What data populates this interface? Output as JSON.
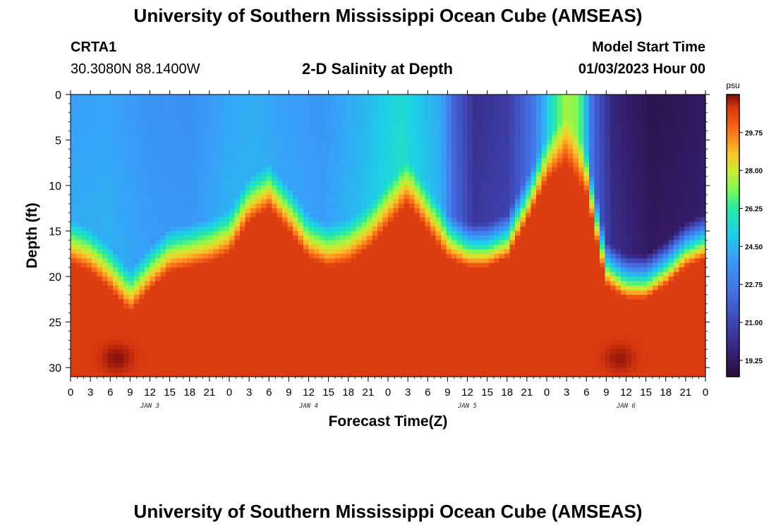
{
  "header": {
    "title": "University of Southern Mississippi Ocean Cube (AMSEAS)",
    "station": "CRTA1",
    "coords": "30.3080N  88.1400W",
    "subtitle": "2-D Salinity at Depth",
    "model_start_label": "Model Start Time",
    "model_start_value": "01/03/2023 Hour 00"
  },
  "footer": {
    "title": "University of Southern Mississippi Ocean Cube (AMSEAS)"
  },
  "chart_data": {
    "type": "heatmap",
    "title": "2-D Salinity at Depth",
    "xlabel": "Forecast Time(Z)",
    "ylabel": "Depth (ft)",
    "x_hours_range": [
      0,
      96
    ],
    "x_tick_step_hours": 3,
    "x_tick_labels": [
      "0",
      "3",
      "6",
      "9",
      "12",
      "15",
      "18",
      "21",
      "0",
      "3",
      "6",
      "9",
      "12",
      "15",
      "18",
      "21",
      "0",
      "3",
      "6",
      "9",
      "12",
      "15",
      "18",
      "21",
      "0",
      "3",
      "6",
      "9",
      "12",
      "15",
      "18",
      "21",
      "0"
    ],
    "day_labels": [
      {
        "label": "JAN 3",
        "hour": 12
      },
      {
        "label": "JAN 4",
        "hour": 36
      },
      {
        "label": "JAN 5",
        "hour": 60
      },
      {
        "label": "JAN 6",
        "hour": 84
      }
    ],
    "y_range_ft": [
      0,
      31
    ],
    "y_ticks": [
      0,
      5,
      10,
      15,
      20,
      25,
      30
    ],
    "colorbar": {
      "unit": "psu",
      "min": 18.5,
      "max": 31.5,
      "tick_values": [
        29.75,
        28.0,
        26.25,
        24.5,
        22.75,
        21.0,
        19.25
      ],
      "tick_labels": [
        "29.75",
        "28.00",
        "26.25",
        "24.50",
        "22.75",
        "21.00",
        "19.25"
      ]
    },
    "halocline_depth_ft": [
      [
        0,
        15.5
      ],
      [
        3,
        16.5
      ],
      [
        6,
        18.5
      ],
      [
        9,
        21.0
      ],
      [
        12,
        18.5
      ],
      [
        15,
        16.5
      ],
      [
        18,
        16.0
      ],
      [
        21,
        15.5
      ],
      [
        24,
        14.5
      ],
      [
        27,
        11.0
      ],
      [
        30,
        9.5
      ],
      [
        33,
        12.0
      ],
      [
        36,
        15.0
      ],
      [
        39,
        16.0
      ],
      [
        42,
        15.5
      ],
      [
        45,
        14.0
      ],
      [
        48,
        11.5
      ],
      [
        51,
        9.0
      ],
      [
        54,
        12.0
      ],
      [
        57,
        15.0
      ],
      [
        60,
        16.0
      ],
      [
        63,
        16.0
      ],
      [
        66,
        15.0
      ],
      [
        69,
        11.0
      ],
      [
        72,
        6.5
      ],
      [
        75,
        4.5
      ],
      [
        78,
        8.0
      ],
      [
        81,
        18.0
      ],
      [
        84,
        19.5
      ],
      [
        87,
        19.5
      ],
      [
        90,
        18.0
      ],
      [
        93,
        16.0
      ],
      [
        96,
        15.0
      ]
    ],
    "surface_salinity_psu": [
      [
        0,
        24.0
      ],
      [
        6,
        24.1
      ],
      [
        12,
        23.6
      ],
      [
        18,
        23.5
      ],
      [
        24,
        24.2
      ],
      [
        28,
        24.3
      ],
      [
        32,
        24.0
      ],
      [
        38,
        23.7
      ],
      [
        44,
        24.5
      ],
      [
        50,
        25.6
      ],
      [
        56,
        24.2
      ],
      [
        58,
        22.0
      ],
      [
        61,
        20.2
      ],
      [
        66,
        20.6
      ],
      [
        70,
        22.6
      ],
      [
        73,
        26.0
      ],
      [
        75,
        27.6
      ],
      [
        77,
        27.0
      ],
      [
        79,
        22.0
      ],
      [
        82,
        19.8
      ],
      [
        88,
        18.9
      ],
      [
        96,
        19.3
      ]
    ],
    "bottom_salinity_psu": 30.8,
    "bottom_maxima": [
      {
        "hour": 7,
        "depth_ft": 29.0,
        "salinity_psu": 31.4
      },
      {
        "hour": 83,
        "depth_ft": 29.0,
        "salinity_psu": 31.3
      }
    ]
  }
}
